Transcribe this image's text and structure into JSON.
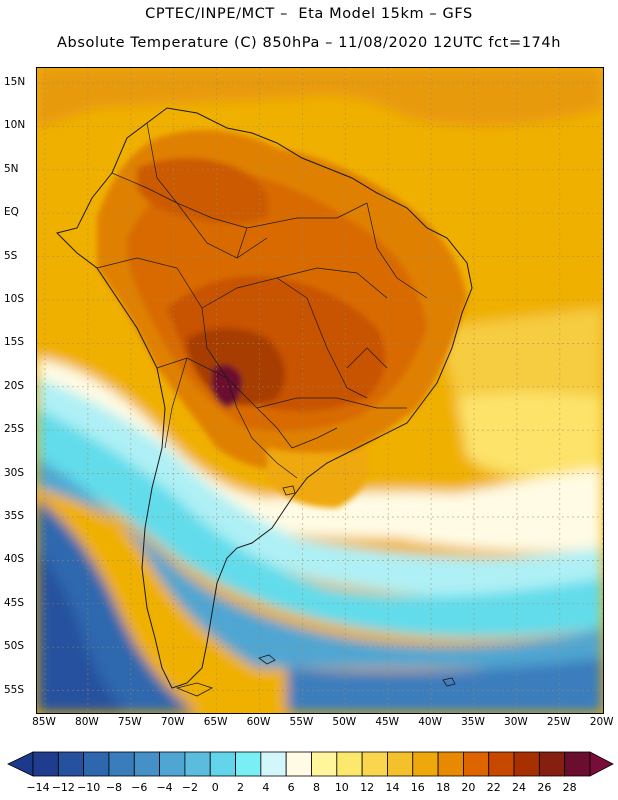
{
  "header": {
    "line1": "CPTEC/INPE/MCT –  Eta Model 15km – GFS",
    "line2": "Absolute Temperature (C) 850hPa – 11/08/2020 12UTC fct=174h"
  },
  "map": {
    "lat_labels": [
      "15N",
      "10N",
      "5N",
      "EQ",
      "5S",
      "10S",
      "15S",
      "20S",
      "25S",
      "30S",
      "35S",
      "40S",
      "45S",
      "50S",
      "55S"
    ],
    "lon_labels": [
      "85W",
      "80W",
      "75W",
      "70W",
      "65W",
      "60W",
      "55W",
      "50W",
      "45W",
      "40W",
      "35W",
      "30W",
      "25W",
      "20W"
    ],
    "field": "850 hPa absolute temperature",
    "hot_spot": "28+ over northern Paraguay / Chaco",
    "cold_region": "-14 to -10 south of 45S in the Pacific"
  },
  "colorbar": {
    "labels": [
      "-14",
      "-12",
      "-10",
      "-8",
      "-6",
      "-4",
      "-2",
      "0",
      "2",
      "4",
      "6",
      "8",
      "10",
      "12",
      "14",
      "16",
      "18",
      "20",
      "22",
      "24",
      "26",
      "28"
    ],
    "colors": [
      "#1f3c8e",
      "#25519e",
      "#2f67ae",
      "#3a7dbd",
      "#4590c6",
      "#4fa6d2",
      "#5bbcdd",
      "#62d5ea",
      "#7aeef5",
      "#d2f6fa",
      "#fffbe4",
      "#fff59a",
      "#fde86e",
      "#f9d64e",
      "#f4c02c",
      "#efa80c",
      "#e88a00",
      "#de6400",
      "#c84800",
      "#a73000",
      "#852010",
      "#6a0d2e"
    ],
    "under_color": "#1b3a8a",
    "over_color": "#7a0c3a"
  }
}
